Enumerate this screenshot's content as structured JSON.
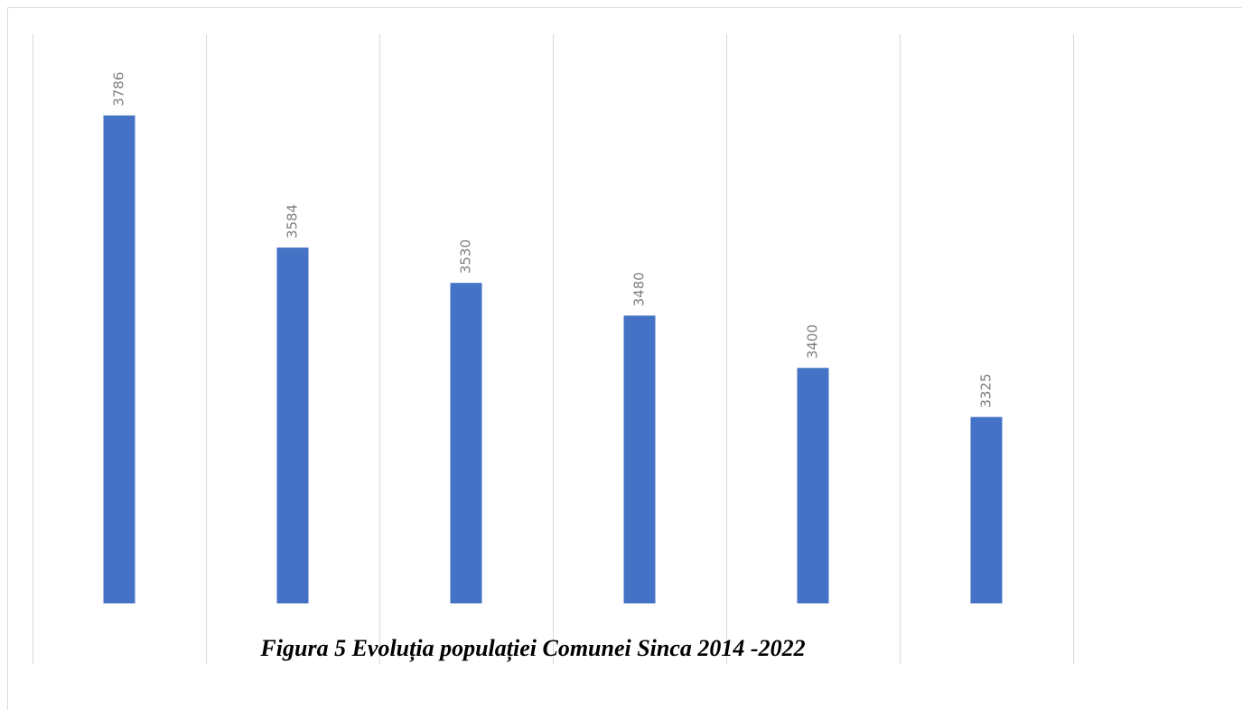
{
  "chart_data": {
    "type": "bar",
    "title": "Figura 5 Evoluția populației Comunei Sinca 2014 -2022",
    "categories": [
      null,
      null,
      null,
      null,
      null,
      null
    ],
    "values": [
      3786,
      3584,
      3530,
      3480,
      3400,
      3325
    ],
    "color": "#4472c4",
    "ylim": [
      3040,
      3910
    ]
  }
}
